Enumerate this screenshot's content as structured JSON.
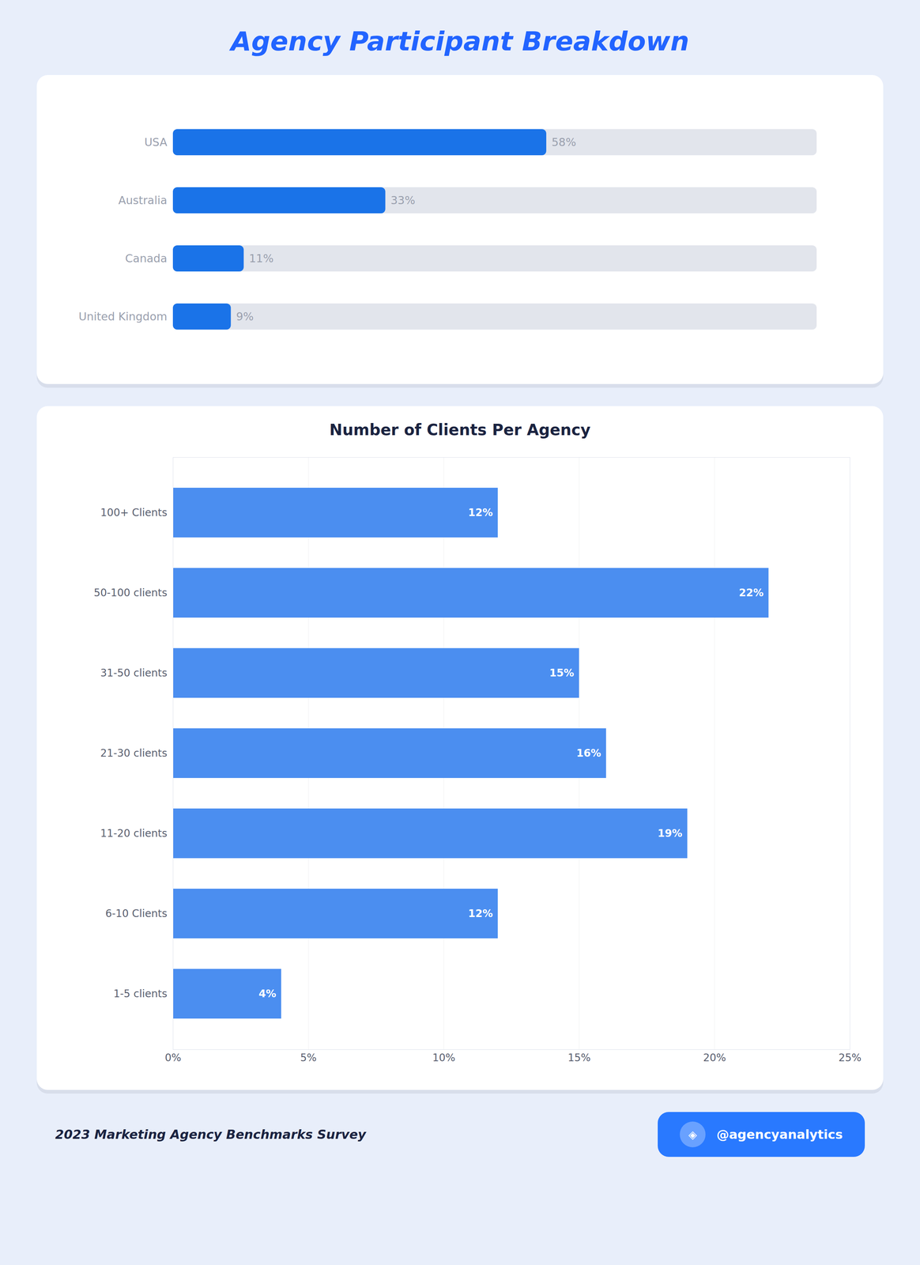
{
  "title": "Agency Participant Breakdown",
  "chart_data": [
    {
      "type": "bar",
      "orientation": "horizontal",
      "categories": [
        "USA",
        "Australia",
        "Canada",
        "United Kingdom"
      ],
      "values": [
        58,
        33,
        11,
        9
      ],
      "value_labels": [
        "58%",
        "33%",
        "11%",
        "9%"
      ],
      "data_labels": true,
      "color": "#1A73E8",
      "xlim": [
        0,
        100
      ],
      "tick_labels": "y",
      "grid": false
    },
    {
      "type": "bar",
      "orientation": "horizontal",
      "title": "Number of Clients Per Agency",
      "categories": [
        "100+ Clients",
        "50-100 clients",
        "31-50 clients",
        "21-30 clients",
        "11-20 clients",
        "6-10 Clients",
        "1-5 clients"
      ],
      "values": [
        12,
        22,
        15,
        16,
        19,
        12,
        4
      ],
      "value_labels": [
        "12%",
        "22%",
        "15%",
        "16%",
        "19%",
        "12%",
        "4%"
      ],
      "data_labels": true,
      "color": "#4B8EF0",
      "xlim": [
        0,
        25
      ],
      "xticks": [
        {
          "value": 0,
          "label": "0%"
        },
        {
          "value": 5,
          "label": "5%"
        },
        {
          "value": 10,
          "label": "10%"
        },
        {
          "value": 15,
          "label": "15%"
        },
        {
          "value": 20,
          "label": "20%"
        },
        {
          "value": 25,
          "label": "25%"
        }
      ],
      "grid": true
    }
  ],
  "annotations": [
    "2023 Marketing Agency Benchmarks Survey",
    "◈",
    "@agencyanalytics"
  ]
}
